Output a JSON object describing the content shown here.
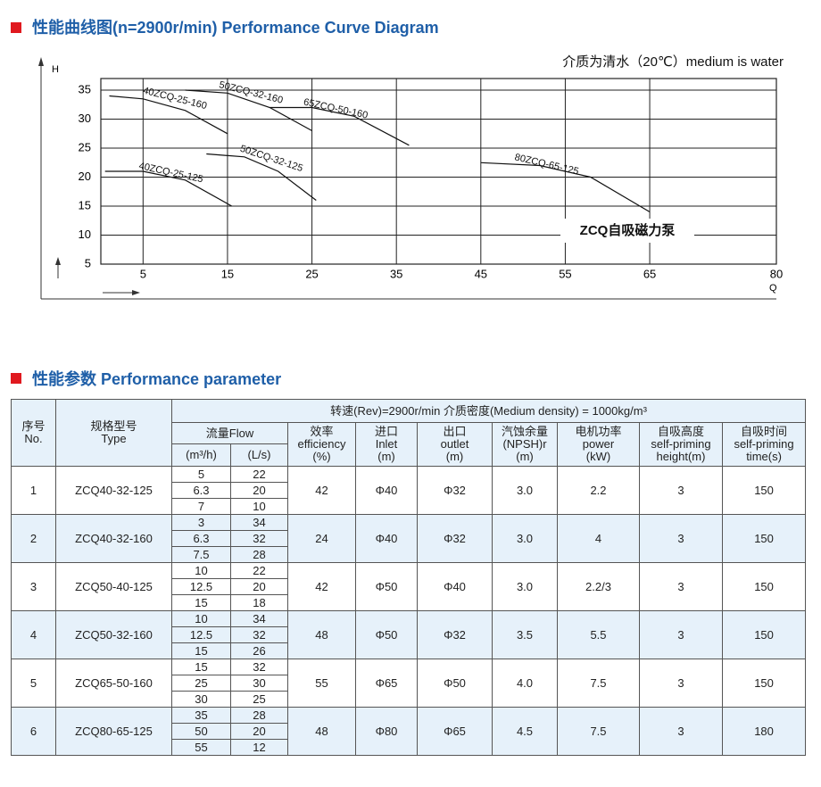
{
  "section_1_title": "性能曲线图(n=2900r/min)  Performance  Curve  Diagram",
  "chart_data": {
    "type": "line",
    "note": "介质为清水（20℃）medium is water",
    "y_label": "H",
    "x_label": "Q",
    "annotation": "ZCQ自吸磁力泵",
    "xlim": [
      0,
      80
    ],
    "ylim": [
      5,
      37
    ],
    "xticks": [
      5,
      15,
      25,
      35,
      45,
      55,
      65,
      80
    ],
    "yticks": [
      5,
      10,
      15,
      20,
      25,
      30,
      35
    ],
    "grid": true,
    "series": [
      {
        "name": "40ZCQ-25-160",
        "color": "#111111",
        "x": [
          1,
          5,
          10,
          15
        ],
        "values": [
          34,
          33.5,
          31.5,
          27.5
        ]
      },
      {
        "name": "50ZCQ-32-160",
        "color": "#111111",
        "x": [
          10,
          15,
          20,
          25
        ],
        "values": [
          35,
          34.5,
          32,
          28
        ]
      },
      {
        "name": "65ZCQ-50-160",
        "color": "#111111",
        "x": [
          20,
          25,
          30,
          36.5
        ],
        "values": [
          32,
          32,
          30.5,
          25.5
        ]
      },
      {
        "name": "40ZCQ-25-125",
        "color": "#111111",
        "x": [
          0.5,
          5,
          10,
          15.5
        ],
        "values": [
          21,
          21,
          19.5,
          15
        ]
      },
      {
        "name": "50ZCQ-32-125",
        "color": "#111111",
        "x": [
          12.5,
          17,
          21,
          25.5
        ],
        "values": [
          24,
          23.5,
          21,
          16
        ]
      },
      {
        "name": "80ZCQ-65-125",
        "color": "#111111",
        "x": [
          45,
          52,
          58,
          65
        ],
        "values": [
          22.5,
          22,
          20,
          14
        ]
      }
    ]
  },
  "section_2_title": "性能参数 Performance parameter",
  "table": {
    "header_note": "转速(Rev)=2900r/min   介质密度(Medium density) = 1000kg/m³",
    "columns": [
      [
        "序号",
        "No."
      ],
      [
        "规格型号",
        "Type"
      ],
      [
        "流量Flow"
      ],
      [
        "效率",
        "efficiency",
        "(%)"
      ],
      [
        "进口",
        "Inlet",
        "(m)"
      ],
      [
        "出口",
        "outlet",
        "(m)"
      ],
      [
        "汽蚀余量",
        "(NPSH)r",
        "(m)"
      ],
      [
        "电机功率",
        "power",
        "(kW)"
      ],
      [
        "自吸高度",
        "self-priming",
        "height(m)"
      ],
      [
        "自吸时间",
        "self-priming",
        "time(s)"
      ]
    ],
    "flow_units": [
      "(m³/h)",
      "(L/s)"
    ],
    "rows": [
      {
        "no": "1",
        "type": "ZCQ40-32-125",
        "flow": [
          [
            "5",
            "22"
          ],
          [
            "6.3",
            "20"
          ],
          [
            "7",
            "10"
          ]
        ],
        "efficiency": "42",
        "inlet": "Φ40",
        "outlet": "Φ32",
        "npsh": "3.0",
        "power": "2.2",
        "height": "3",
        "time": "150"
      },
      {
        "no": "2",
        "type": "ZCQ40-32-160",
        "flow": [
          [
            "3",
            "34"
          ],
          [
            "6.3",
            "32"
          ],
          [
            "7.5",
            "28"
          ]
        ],
        "efficiency": "24",
        "inlet": "Φ40",
        "outlet": "Φ32",
        "npsh": "3.0",
        "power": "4",
        "height": "3",
        "time": "150"
      },
      {
        "no": "3",
        "type": "ZCQ50-40-125",
        "flow": [
          [
            "10",
            "22"
          ],
          [
            "12.5",
            "20"
          ],
          [
            "15",
            "18"
          ]
        ],
        "efficiency": "42",
        "inlet": "Φ50",
        "outlet": "Φ40",
        "npsh": "3.0",
        "power": "2.2/3",
        "height": "3",
        "time": "150"
      },
      {
        "no": "4",
        "type": "ZCQ50-32-160",
        "flow": [
          [
            "10",
            "34"
          ],
          [
            "12.5",
            "32"
          ],
          [
            "15",
            "26"
          ]
        ],
        "efficiency": "48",
        "inlet": "Φ50",
        "outlet": "Φ32",
        "npsh": "3.5",
        "power": "5.5",
        "height": "3",
        "time": "150"
      },
      {
        "no": "5",
        "type": "ZCQ65-50-160",
        "flow": [
          [
            "15",
            "32"
          ],
          [
            "25",
            "30"
          ],
          [
            "30",
            "25"
          ]
        ],
        "efficiency": "55",
        "inlet": "Φ65",
        "outlet": "Φ50",
        "npsh": "4.0",
        "power": "7.5",
        "height": "3",
        "time": "150"
      },
      {
        "no": "6",
        "type": "ZCQ80-65-125",
        "flow": [
          [
            "35",
            "28"
          ],
          [
            "50",
            "20"
          ],
          [
            "55",
            "12"
          ]
        ],
        "efficiency": "48",
        "inlet": "Φ80",
        "outlet": "Φ65",
        "npsh": "4.5",
        "power": "7.5",
        "height": "3",
        "time": "180"
      }
    ]
  }
}
